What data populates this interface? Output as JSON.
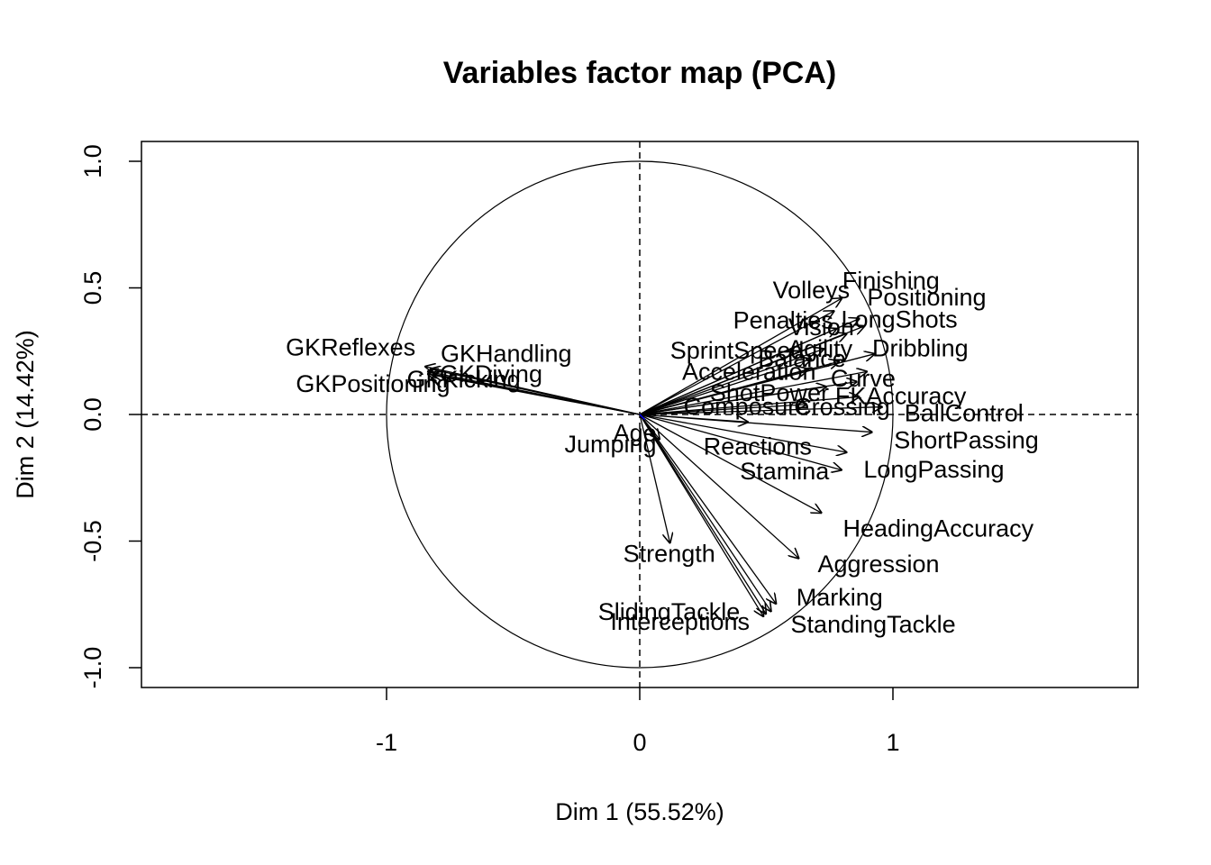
{
  "chart_data": {
    "type": "scatter",
    "title": "Variables factor map (PCA)",
    "xlabel": "Dim 1 (55.52%)",
    "ylabel": "Dim 2 (14.42%)",
    "xlim": [
      -1.97,
      1.97
    ],
    "ylim": [
      -1.08,
      1.08
    ],
    "xticks": [
      -1,
      0,
      1
    ],
    "yticks": [
      -1.0,
      -0.5,
      0.0,
      0.5,
      1.0
    ],
    "xtick_labels": [
      "-1",
      "0",
      "1"
    ],
    "ytick_labels": [
      "-1.0",
      "-0.5",
      "0.0",
      "0.5",
      "1.0"
    ],
    "reference_lines": "dashed at x=0 and y=0",
    "unit_circle": true,
    "arrow_color": "#000000",
    "supplementary_color": "#0000ff",
    "variables": [
      {
        "name": "Finishing",
        "x": 0.8,
        "y": 0.46
      },
      {
        "name": "Volleys",
        "x": 0.77,
        "y": 0.41
      },
      {
        "name": "Positioning",
        "x": 0.87,
        "y": 0.38
      },
      {
        "name": "LongShots",
        "x": 0.89,
        "y": 0.35
      },
      {
        "name": "Vision",
        "x": 0.82,
        "y": 0.32
      },
      {
        "name": "Penalties",
        "x": 0.78,
        "y": 0.34
      },
      {
        "name": "Agility",
        "x": 0.73,
        "y": 0.26
      },
      {
        "name": "SprintSpeed",
        "x": 0.68,
        "y": 0.22
      },
      {
        "name": "Acceleration",
        "x": 0.67,
        "y": 0.18
      },
      {
        "name": "Balance",
        "x": 0.79,
        "y": 0.21
      },
      {
        "name": "Dribbling",
        "x": 0.93,
        "y": 0.24
      },
      {
        "name": "Curve",
        "x": 0.9,
        "y": 0.17
      },
      {
        "name": "FKAccuracy",
        "x": 0.86,
        "y": 0.13
      },
      {
        "name": "ShotPower",
        "x": 0.74,
        "y": 0.11
      },
      {
        "name": "Crossing",
        "x": 0.87,
        "y": 0.07
      },
      {
        "name": "Composure",
        "x": 0.66,
        "y": 0.04
      },
      {
        "name": "BallControl",
        "x": 0.96,
        "y": 0.03
      },
      {
        "name": "ShortPassing",
        "x": 0.92,
        "y": -0.07
      },
      {
        "name": "Reactions",
        "x": 0.43,
        "y": -0.03
      },
      {
        "name": "LongPassing",
        "x": 0.82,
        "y": -0.15
      },
      {
        "name": "Stamina",
        "x": 0.8,
        "y": -0.22
      },
      {
        "name": "HeadingAccuracy",
        "x": 0.72,
        "y": -0.39
      },
      {
        "name": "Aggression",
        "x": 0.63,
        "y": -0.57
      },
      {
        "name": "Marking",
        "x": 0.54,
        "y": -0.75
      },
      {
        "name": "StandingTackle",
        "x": 0.52,
        "y": -0.78
      },
      {
        "name": "SlidingTackle",
        "x": 0.5,
        "y": -0.79
      },
      {
        "name": "Interceptions",
        "x": 0.49,
        "y": -0.8
      },
      {
        "name": "Strength",
        "x": 0.12,
        "y": -0.51
      },
      {
        "name": "Jumping",
        "x": 0.08,
        "y": -0.1
      },
      {
        "name": "GKReflexes",
        "x": -0.85,
        "y": 0.19
      },
      {
        "name": "GKHandling",
        "x": -0.83,
        "y": 0.18
      },
      {
        "name": "GKPositioning",
        "x": -0.84,
        "y": 0.16
      },
      {
        "name": "GKDiving",
        "x": -0.84,
        "y": 0.17
      },
      {
        "name": "GKKicking",
        "x": -0.82,
        "y": 0.16
      }
    ],
    "supplementary": [
      {
        "name": "Age",
        "x": 0.02,
        "y": -0.02
      }
    ]
  }
}
